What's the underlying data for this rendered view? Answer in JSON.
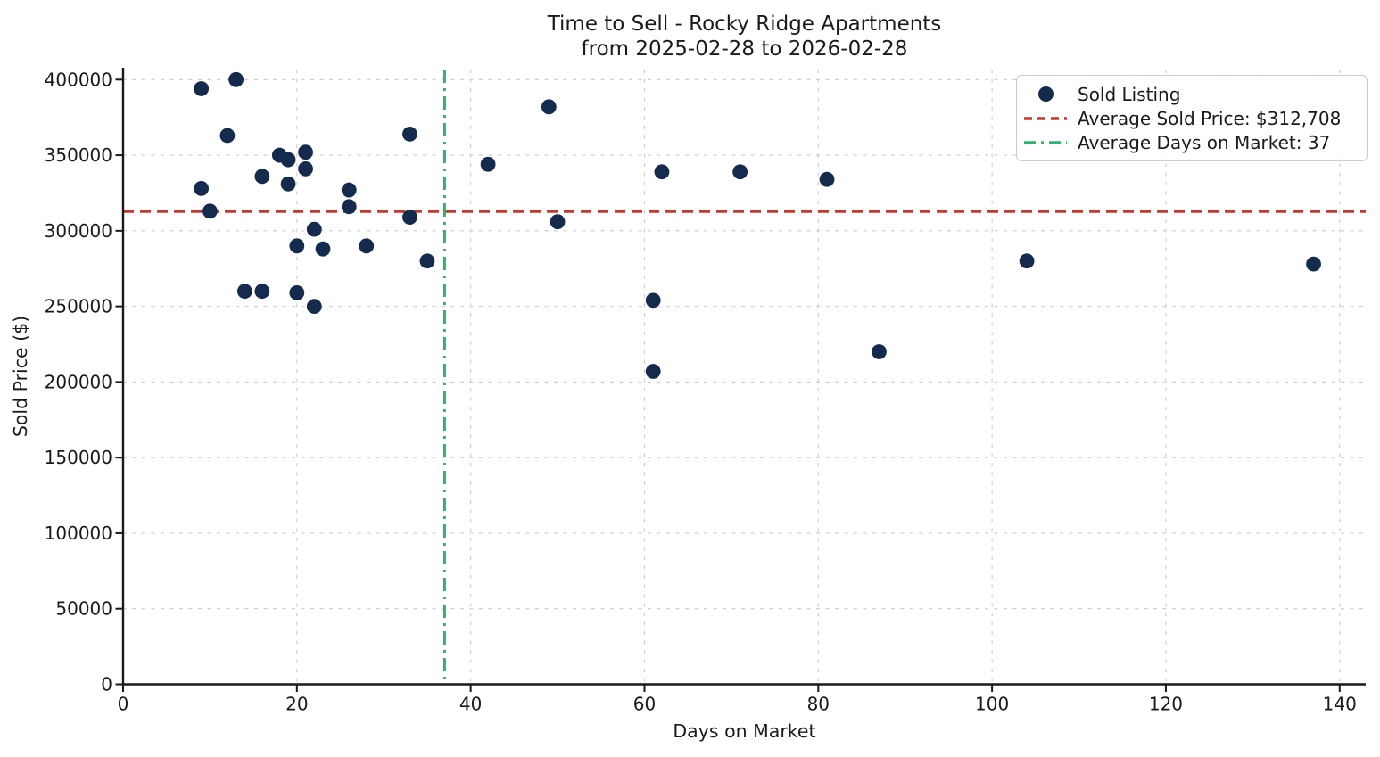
{
  "title": {
    "line1": "Time to Sell - Rocky Ridge Apartments",
    "line2": "from 2025-02-28 to 2026-02-28"
  },
  "colors": {
    "scatter_point": "#142b4d",
    "avg_price_line": "#c13a2c",
    "avg_days_line": "#2fb36d",
    "grid": "#cccccc",
    "text": "#1a1a1a"
  },
  "legend": {
    "items": [
      {
        "marker": "dot",
        "label": "Sold Listing"
      },
      {
        "marker": "dashed-line",
        "label": "Average Sold Price: $312,708"
      },
      {
        "marker": "dashdot-line",
        "label": "Average Days on Market: 37"
      }
    ]
  },
  "chart_data": {
    "type": "scatter",
    "title": "Time to Sell - Rocky Ridge Apartments\nfrom 2025-02-28 to 2026-02-28",
    "xlabel": "Days on Market",
    "ylabel": "Sold Price ($)",
    "xlim": [
      0,
      143
    ],
    "ylim": [
      0,
      406667
    ],
    "x_ticks": [
      0,
      20,
      40,
      60,
      80,
      100,
      120,
      140
    ],
    "y_ticks": [
      0,
      50000,
      100000,
      150000,
      200000,
      250000,
      300000,
      350000,
      400000
    ],
    "grid": true,
    "legend_position": "upper right",
    "series": [
      {
        "name": "Sold Listing",
        "kind": "scatter",
        "points": [
          [
            9,
            394000
          ],
          [
            13,
            400000
          ],
          [
            12,
            363000
          ],
          [
            9,
            328000
          ],
          [
            10,
            313000
          ],
          [
            16,
            336000
          ],
          [
            18,
            350000
          ],
          [
            19,
            347000
          ],
          [
            21,
            352000
          ],
          [
            21,
            341000
          ],
          [
            19,
            331000
          ],
          [
            26,
            327000
          ],
          [
            26,
            316000
          ],
          [
            22,
            301000
          ],
          [
            20,
            290000
          ],
          [
            23,
            288000
          ],
          [
            28,
            290000
          ],
          [
            14,
            260000
          ],
          [
            16,
            260000
          ],
          [
            20,
            259000
          ],
          [
            22,
            250000
          ],
          [
            33,
            364000
          ],
          [
            33,
            309000
          ],
          [
            35,
            280000
          ],
          [
            42,
            344000
          ],
          [
            49,
            382000
          ],
          [
            50,
            306000
          ],
          [
            62,
            339000
          ],
          [
            61,
            254000
          ],
          [
            61,
            207000
          ],
          [
            71,
            339000
          ],
          [
            81,
            334000
          ],
          [
            87,
            220000
          ],
          [
            104,
            280000
          ],
          [
            137,
            278000
          ]
        ]
      },
      {
        "name": "Average Sold Price: $312,708",
        "kind": "hline",
        "value": 312708,
        "style": "dashed"
      },
      {
        "name": "Average Days on Market: 37",
        "kind": "vline",
        "value": 37,
        "style": "dashdot"
      }
    ]
  }
}
